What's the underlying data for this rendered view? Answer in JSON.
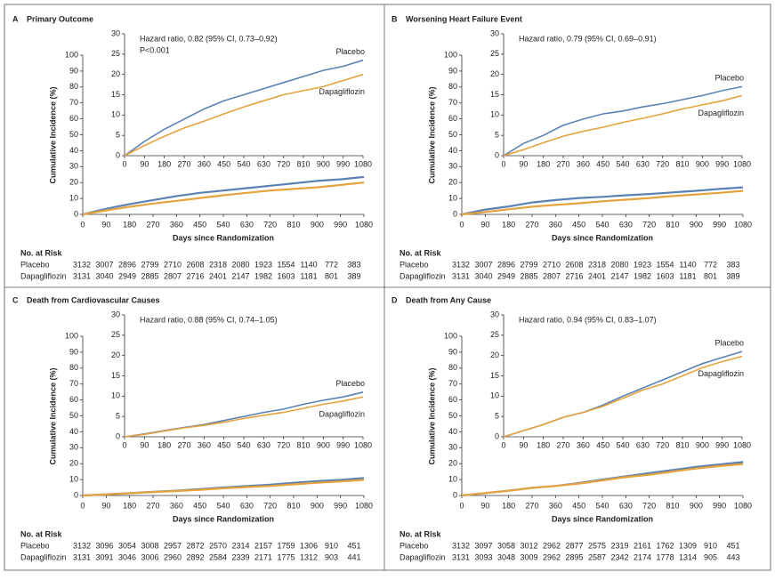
{
  "chart_data": [
    {
      "type": "line",
      "panel": "A",
      "title": "Primary Outcome",
      "xlabel": "Days since Randomization",
      "ylabel": "Cumulative Incidence (%)",
      "x": [
        0,
        90,
        180,
        270,
        360,
        450,
        540,
        630,
        720,
        810,
        900,
        990,
        1080
      ],
      "xlim": [
        0,
        1080
      ],
      "xticks": [
        0,
        90,
        180,
        270,
        360,
        450,
        540,
        630,
        720,
        810,
        900,
        990,
        1080
      ],
      "ylim": [
        0,
        100
      ],
      "yticks": [
        0,
        10,
        20,
        30,
        40,
        50,
        60,
        70,
        80,
        90,
        100
      ],
      "inset": {
        "ylim": [
          0,
          30
        ],
        "yticks": [
          0,
          5,
          10,
          15,
          20,
          25,
          30
        ],
        "annotations": [
          "Hazard ratio, 0.82 (95% CI, 0.73–0.92)",
          "P<0.001"
        ]
      },
      "series": [
        {
          "name": "Placebo",
          "color": "#5b82b4",
          "values": [
            0,
            3.5,
            6.5,
            9,
            11.5,
            13.5,
            15,
            16.5,
            18,
            19.5,
            21,
            22,
            23.5
          ]
        },
        {
          "name": "Dapagliflozin",
          "color": "#e6a23c",
          "values": [
            0,
            2.5,
            4.8,
            6.8,
            8.5,
            10.3,
            12,
            13.5,
            15,
            16,
            17,
            18.5,
            20
          ]
        }
      ],
      "risk_table": {
        "title": "No. at Risk",
        "rows": [
          {
            "name": "Placebo",
            "values": [
              3132,
              3007,
              2896,
              2799,
              2710,
              2608,
              2318,
              2080,
              1923,
              1554,
              1140,
              772,
              383
            ]
          },
          {
            "name": "Dapagliflozin",
            "values": [
              3131,
              3040,
              2949,
              2885,
              2807,
              2716,
              2401,
              2147,
              1982,
              1603,
              1181,
              801,
              389
            ]
          }
        ]
      }
    },
    {
      "type": "line",
      "panel": "B",
      "title": "Worsening Heart Failure Event",
      "xlabel": "Days since Randomization",
      "ylabel": "Cumulative Incidence (%)",
      "x": [
        0,
        90,
        180,
        270,
        360,
        450,
        540,
        630,
        720,
        810,
        900,
        990,
        1080
      ],
      "xlim": [
        0,
        1080
      ],
      "xticks": [
        0,
        90,
        180,
        270,
        360,
        450,
        540,
        630,
        720,
        810,
        900,
        990,
        1080
      ],
      "ylim": [
        0,
        100
      ],
      "yticks": [
        0,
        10,
        20,
        30,
        40,
        50,
        60,
        70,
        80,
        90,
        100
      ],
      "inset": {
        "ylim": [
          0,
          30
        ],
        "yticks": [
          0,
          5,
          10,
          15,
          20,
          25,
          30
        ],
        "annotations": [
          "Hazard ratio, 0.79 (95% CI, 0.69–0.91)"
        ]
      },
      "series": [
        {
          "name": "Placebo",
          "color": "#5b82b4",
          "values": [
            0,
            3,
            5,
            7.5,
            9,
            10.3,
            11,
            12,
            12.8,
            13.8,
            14.8,
            16,
            17
          ]
        },
        {
          "name": "Dapagliflozin",
          "color": "#e6a23c",
          "values": [
            0,
            1.5,
            3.2,
            4.8,
            6,
            7,
            8.2,
            9.2,
            10.3,
            11.5,
            12.5,
            13.5,
            14.8
          ]
        }
      ],
      "risk_table": {
        "title": "No. at Risk",
        "rows": [
          {
            "name": "Placebo",
            "values": [
              3132,
              3007,
              2896,
              2799,
              2710,
              2608,
              2318,
              2080,
              1923,
              1554,
              1140,
              772,
              383
            ]
          },
          {
            "name": "Dapagliflozin",
            "values": [
              3131,
              3040,
              2949,
              2885,
              2807,
              2716,
              2401,
              2147,
              1982,
              1603,
              1181,
              801,
              389
            ]
          }
        ]
      }
    },
    {
      "type": "line",
      "panel": "C",
      "title": "Death from Cardiovascular Causes",
      "xlabel": "Days since Randomization",
      "ylabel": "Cumulative Incidence (%)",
      "x": [
        0,
        90,
        180,
        270,
        360,
        450,
        540,
        630,
        720,
        810,
        900,
        990,
        1080
      ],
      "xlim": [
        0,
        1080
      ],
      "xticks": [
        0,
        90,
        180,
        270,
        360,
        450,
        540,
        630,
        720,
        810,
        900,
        990,
        1080
      ],
      "ylim": [
        0,
        100
      ],
      "yticks": [
        0,
        10,
        20,
        30,
        40,
        50,
        60,
        70,
        80,
        90,
        100
      ],
      "inset": {
        "ylim": [
          0,
          30
        ],
        "yticks": [
          0,
          5,
          10,
          15,
          20,
          25,
          30
        ],
        "annotations": [
          "Hazard ratio, 0.88 (95% CI, 0.74–1.05)"
        ]
      },
      "series": [
        {
          "name": "Placebo",
          "color": "#5b82b4",
          "values": [
            0,
            0.7,
            1.5,
            2.3,
            3,
            4,
            5,
            6,
            6.8,
            8,
            9,
            9.8,
            11
          ]
        },
        {
          "name": "Dapagliflozin",
          "color": "#e6a23c",
          "values": [
            0,
            0.6,
            1.4,
            2.2,
            2.8,
            3.6,
            4.5,
            5.3,
            6,
            7,
            8,
            8.8,
            9.8
          ]
        }
      ],
      "risk_table": {
        "title": "No. at Risk",
        "rows": [
          {
            "name": "Placebo",
            "values": [
              3132,
              3096,
              3054,
              3008,
              2957,
              2872,
              2570,
              2314,
              2157,
              1759,
              1306,
              910,
              451
            ]
          },
          {
            "name": "Dapagliflozin",
            "values": [
              3131,
              3091,
              3046,
              3006,
              2960,
              2892,
              2584,
              2339,
              2171,
              1775,
              1312,
              903,
              441
            ]
          }
        ]
      }
    },
    {
      "type": "line",
      "panel": "D",
      "title": "Death from Any Cause",
      "xlabel": "Days since Randomization",
      "ylabel": "Cumulative Incidence (%)",
      "x": [
        0,
        90,
        180,
        270,
        360,
        450,
        540,
        630,
        720,
        810,
        900,
        990,
        1080
      ],
      "xlim": [
        0,
        1080
      ],
      "xticks": [
        0,
        90,
        180,
        270,
        360,
        450,
        540,
        630,
        720,
        810,
        900,
        990,
        1080
      ],
      "ylim": [
        0,
        100
      ],
      "yticks": [
        0,
        10,
        20,
        30,
        40,
        50,
        60,
        70,
        80,
        90,
        100
      ],
      "inset": {
        "ylim": [
          0,
          30
        ],
        "yticks": [
          0,
          5,
          10,
          15,
          20,
          25,
          30
        ],
        "annotations": [
          "Hazard ratio, 0.94 (95% CI, 0.83–1.07)"
        ]
      },
      "series": [
        {
          "name": "Placebo",
          "color": "#5b82b4",
          "values": [
            0,
            1.5,
            3,
            4.8,
            6,
            7.8,
            10,
            12,
            14,
            16,
            18,
            19.5,
            21
          ]
        },
        {
          "name": "Dapagliflozin",
          "color": "#e6a23c",
          "values": [
            0,
            1.5,
            3,
            4.8,
            6,
            7.5,
            9.5,
            11.5,
            13,
            15,
            17,
            18.5,
            19.8
          ]
        }
      ],
      "risk_table": {
        "title": "No. at Risk",
        "rows": [
          {
            "name": "Placebo",
            "values": [
              3132,
              3097,
              3058,
              3012,
              2962,
              2877,
              2575,
              2319,
              2161,
              1762,
              1309,
              910,
              451
            ]
          },
          {
            "name": "Dapagliflozin",
            "values": [
              3131,
              3093,
              3048,
              3009,
              2962,
              2895,
              2587,
              2342,
              2174,
              1778,
              1314,
              905,
              443
            ]
          }
        ]
      }
    }
  ]
}
